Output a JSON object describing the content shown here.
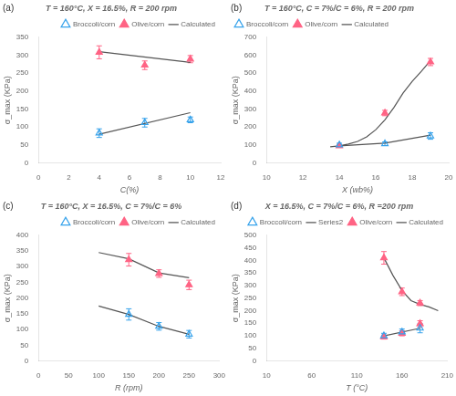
{
  "chart_data": [
    {
      "type": "scatter",
      "title": "T = 160°C, X = 16.5%, R = 200 rpm",
      "annotation": "(a)",
      "xlabel": "C(%)",
      "ylabel": "σ_max (KPa)",
      "xlim": [
        0,
        12
      ],
      "ylim": [
        0,
        350
      ],
      "xticks": [
        0,
        2,
        4,
        6,
        8,
        10,
        12
      ],
      "yticks": [
        0,
        50,
        100,
        150,
        200,
        250,
        300,
        350
      ],
      "grid": false,
      "legend": "upper right",
      "series": [
        {
          "name": "Broccoli/corn",
          "type": "scatter",
          "marker": "triangle_open",
          "color": "#36a2eb",
          "x": [
            4,
            7,
            10
          ],
          "values": [
            83,
            112,
            120
          ],
          "errors": [
            12,
            12,
            8
          ]
        },
        {
          "name": "Olive/corn",
          "type": "scatter",
          "marker": "triangle_filled",
          "color": "#ff6384",
          "x": [
            4,
            7,
            10
          ],
          "values": [
            308,
            272,
            289
          ],
          "errors": [
            18,
            12,
            10
          ]
        },
        {
          "name": "Calculated",
          "type": "line",
          "line_style": "solid",
          "color": "#555555",
          "lines": [
            {
              "x": [
                4,
                10
              ],
              "values": [
                80,
                140
              ]
            },
            {
              "x": [
                4,
                10
              ],
              "values": [
                310,
                280
              ]
            }
          ]
        }
      ]
    },
    {
      "type": "scatter",
      "title": "T = 160°C, C = 7%/C = 6%, R = 200 rpm",
      "annotation": "(b)",
      "xlabel": "X (wb%)",
      "ylabel": "σ_max (KPa)",
      "xlim": [
        10,
        20
      ],
      "ylim": [
        0,
        700
      ],
      "xticks": [
        10,
        12,
        14,
        16,
        18,
        20
      ],
      "yticks": [
        0,
        100,
        200,
        300,
        400,
        500,
        600,
        700
      ],
      "grid": false,
      "legend": "upper left",
      "series": [
        {
          "name": "Broccoli/corn",
          "type": "scatter",
          "marker": "triangle_open",
          "color": "#36a2eb",
          "x": [
            14,
            16.5,
            19
          ],
          "values": [
            100,
            107,
            150
          ],
          "errors": [
            10,
            10,
            18
          ]
        },
        {
          "name": "Olive/corn",
          "type": "scatter",
          "marker": "triangle_filled",
          "color": "#ff6384",
          "x": [
            14,
            16.5,
            19
          ],
          "values": [
            95,
            278,
            562
          ],
          "errors": [
            8,
            15,
            20
          ]
        },
        {
          "name": "Calculated",
          "type": "line",
          "line_style": "solid",
          "color": "#555555",
          "lines": [
            {
              "x": [
                14,
                16.5,
                19
              ],
              "values": [
                95,
                110,
                155
              ]
            },
            {
              "x": [
                13.5,
                14.0,
                14.5,
                15.0,
                15.5,
                16.0,
                16.5,
                17.0,
                17.5,
                18.0,
                18.5,
                19.0
              ],
              "values": [
                90,
                95,
                105,
                120,
                145,
                185,
                240,
                310,
                390,
                455,
                510,
                570
              ]
            }
          ]
        }
      ]
    },
    {
      "type": "scatter",
      "title": "T = 160°C, X = 16.5%, C = 7%/C = 6%",
      "annotation": "(c)",
      "xlabel": "R (rpm)",
      "ylabel": "σ_max (KPa)",
      "xlim": [
        0,
        300
      ],
      "ylim": [
        0,
        400
      ],
      "xticks": [
        0,
        50,
        100,
        150,
        200,
        250,
        300
      ],
      "yticks": [
        0,
        50,
        100,
        150,
        200,
        250,
        300,
        350,
        400
      ],
      "grid": false,
      "legend": "upper right",
      "series": [
        {
          "name": "Broccoli/corn",
          "type": "scatter",
          "marker": "triangle_open",
          "color": "#36a2eb",
          "x": [
            150,
            200,
            250
          ],
          "values": [
            148,
            110,
            85
          ],
          "errors": [
            18,
            12,
            12
          ]
        },
        {
          "name": "Olive/corn",
          "type": "scatter",
          "marker": "triangle_filled",
          "color": "#ff6384",
          "x": [
            150,
            200,
            250
          ],
          "values": [
            322,
            278,
            242
          ],
          "errors": [
            20,
            12,
            15
          ]
        },
        {
          "name": "Calculated",
          "type": "line",
          "line_style": "solid",
          "color": "#555555",
          "lines": [
            {
              "x": [
                100,
                150,
                200,
                250
              ],
              "values": [
                175,
                148,
                110,
                85
              ]
            },
            {
              "x": [
                100,
                150,
                200,
                250
              ],
              "values": [
                345,
                325,
                280,
                265
              ]
            }
          ]
        }
      ]
    },
    {
      "type": "scatter",
      "title": "X = 16.5%, C = 7%/C = 6%, R =200 rpm",
      "annotation": "(d)",
      "xlabel": "T (°C)",
      "ylabel": "σ_max (KPa)",
      "xlim": [
        10,
        210
      ],
      "ylim": [
        0,
        500
      ],
      "xticks": [
        10,
        60,
        110,
        160,
        210
      ],
      "yticks": [
        0,
        50,
        100,
        150,
        200,
        250,
        300,
        350,
        400,
        450,
        500
      ],
      "grid": false,
      "legend": "upper right",
      "series": [
        {
          "name": "Broccoli/corn",
          "type": "scatter",
          "marker": "triangle_open",
          "color": "#36a2eb",
          "x": [
            140,
            160,
            180
          ],
          "values": [
            100,
            115,
            130
          ],
          "errors": [
            10,
            12,
            18
          ]
        },
        {
          "name": "Series2",
          "type": "line",
          "line_style": "solid",
          "color": "#555555",
          "x": [],
          "values": []
        },
        {
          "name": "Olive/corn",
          "type": "scatter",
          "marker": "triangle_filled",
          "color": "#ff6384",
          "x": [
            140,
            160,
            180,
            140,
            160,
            180
          ],
          "values": [
            95,
            110,
            148,
            410,
            275,
            230
          ],
          "errors": [
            8,
            10,
            12,
            25,
            15,
            10
          ]
        },
        {
          "name": "Calculated",
          "type": "line",
          "line_style": "solid",
          "color": "#555555",
          "lines": [
            {
              "x": [
                140,
                180
              ],
              "values": [
                100,
                130
              ]
            },
            {
              "x": [
                140,
                150,
                160,
                170,
                180,
                190,
                200
              ],
              "values": [
                410,
                340,
                280,
                240,
                225,
                215,
                200
              ]
            }
          ]
        }
      ]
    }
  ]
}
